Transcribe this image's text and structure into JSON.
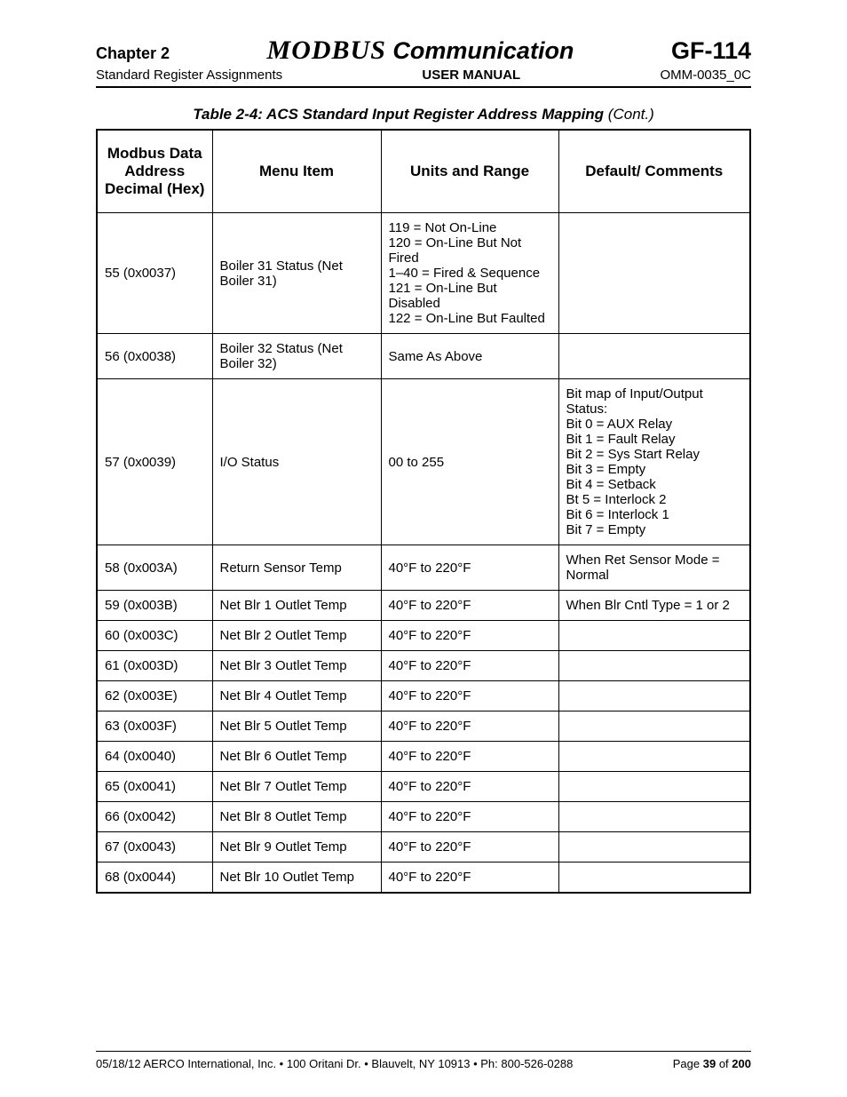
{
  "header": {
    "chapter": "Chapter 2",
    "modbus": "MODBUS",
    "comm": " Communication",
    "gf": "GF-114",
    "left2": "Standard Register Assignments",
    "center2": "USER MANUAL",
    "right2": "OMM-0035_0C"
  },
  "caption": {
    "bold": "Table 2-4:  ACS Standard Input Register Address Mapping ",
    "rest": "(Cont.)"
  },
  "columns": [
    "Modbus Data Address Decimal (Hex)",
    "Menu Item",
    "Units and Range",
    "Default/ Comments"
  ],
  "rows": [
    {
      "addr": "55 (0x0037)",
      "menu": "Boiler 31 Status (Net Boiler 31)",
      "units": "119 = Not On-Line\n120 = On-Line But Not Fired\n1–40 = Fired & Sequence\n121 = On-Line But Disabled\n122 = On-Line But Faulted",
      "comm": ""
    },
    {
      "addr": "56 (0x0038)",
      "menu": "Boiler 32 Status (Net Boiler 32)",
      "units": "Same As Above",
      "comm": ""
    },
    {
      "addr": "57 (0x0039)",
      "menu": "I/O Status",
      "units": "00 to 255",
      "comm": "Bit map of Input/Output Status:\nBit 0 = AUX Relay\nBit 1 = Fault Relay\nBit 2 = Sys Start Relay\nBit 3 = Empty\nBit 4 = Setback\nBt 5 = Interlock 2\nBit 6 = Interlock 1\nBit 7 = Empty"
    },
    {
      "addr": "58 (0x003A)",
      "menu": "Return Sensor Temp",
      "units": "40°F to 220°F",
      "comm": "When Ret Sensor Mode = Normal"
    },
    {
      "addr": "59 (0x003B)",
      "menu": "Net Blr 1 Outlet Temp",
      "units": "40°F to 220°F",
      "comm": "When Blr Cntl Type = 1 or 2"
    },
    {
      "addr": "60 (0x003C)",
      "menu": "Net Blr 2 Outlet Temp",
      "units": "40°F to 220°F",
      "comm": ""
    },
    {
      "addr": "61 (0x003D)",
      "menu": "Net Blr 3 Outlet Temp",
      "units": "40°F to 220°F",
      "comm": ""
    },
    {
      "addr": "62 (0x003E)",
      "menu": "Net Blr 4 Outlet Temp",
      "units": "40°F to 220°F",
      "comm": ""
    },
    {
      "addr": "63 (0x003F)",
      "menu": "Net Blr 5 Outlet Temp",
      "units": "40°F to 220°F",
      "comm": ""
    },
    {
      "addr": "64 (0x0040)",
      "menu": "Net Blr 6 Outlet Temp",
      "units": "40°F to 220°F",
      "comm": ""
    },
    {
      "addr": "65 (0x0041)",
      "menu": "Net Blr 7 Outlet Temp",
      "units": "40°F to 220°F",
      "comm": ""
    },
    {
      "addr": "66 (0x0042)",
      "menu": "Net Blr 8 Outlet Temp",
      "units": "40°F to 220°F",
      "comm": ""
    },
    {
      "addr": "67 (0x0043)",
      "menu": "Net Blr 9 Outlet Temp",
      "units": "40°F to 220°F",
      "comm": ""
    },
    {
      "addr": "68 (0x0044)",
      "menu": "Net Blr 10 Outlet Temp",
      "units": "40°F to 220°F",
      "comm": ""
    }
  ],
  "footer": {
    "left": "05/18/12  AERCO International, Inc. • 100 Oritani Dr. • Blauvelt, NY 10913 • Ph: 800-526-0288",
    "page_prefix": "Page ",
    "page_num": "39",
    "page_of": " of ",
    "page_total": "200"
  }
}
